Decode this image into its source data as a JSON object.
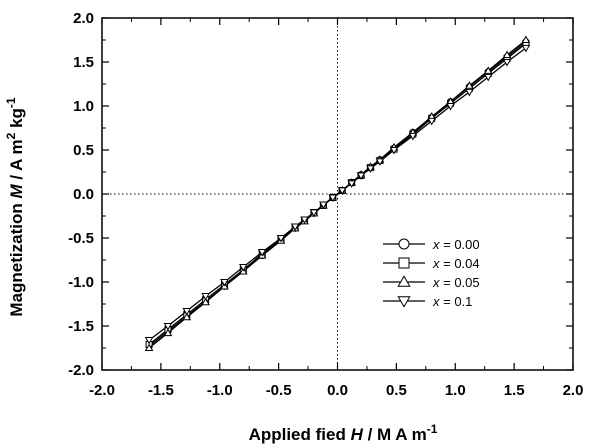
{
  "chart_data": {
    "type": "line",
    "xlabel": {
      "prefix": "Applied fied ",
      "symbol": "H",
      "unit": " / M A m",
      "unit_sup": "-1"
    },
    "ylabel": {
      "prefix": "Magnetization ",
      "symbol": "M",
      "unit": " / A m",
      "unit_sup": "2",
      "unit_after": " kg",
      "unit_sup2": "-1"
    },
    "xlim": [
      -2.0,
      2.0
    ],
    "ylim": [
      -2.0,
      2.0
    ],
    "xticks": [
      "-2.0",
      "-1.5",
      "-1.0",
      "-0.5",
      "0.0",
      "0.5",
      "1.0",
      "1.5",
      "2.0"
    ],
    "yticks": [
      "-2.0",
      "-1.5",
      "-1.0",
      "-0.5",
      "0.0",
      "0.5",
      "1.0",
      "1.5",
      "2.0"
    ],
    "zero_lines": "dotted",
    "legend_position": "lower-right",
    "series": [
      {
        "name": "x = 0.00",
        "var": "x",
        "value_text": " = 0.00",
        "marker": "circle",
        "x": [
          -1.6,
          -1.44,
          -1.28,
          -1.12,
          -0.96,
          -0.8,
          -0.64,
          -0.48,
          -0.36,
          -0.28,
          -0.2,
          -0.12,
          -0.04,
          0.04,
          0.12,
          0.2,
          0.28,
          0.36,
          0.48,
          0.64,
          0.8,
          0.96,
          1.12,
          1.28,
          1.44,
          1.6
        ],
        "y": [
          -1.73,
          -1.56,
          -1.39,
          -1.22,
          -1.05,
          -0.87,
          -0.7,
          -0.52,
          -0.39,
          -0.3,
          -0.22,
          -0.13,
          -0.04,
          0.04,
          0.13,
          0.22,
          0.3,
          0.39,
          0.52,
          0.7,
          0.87,
          1.05,
          1.22,
          1.39,
          1.56,
          1.73
        ]
      },
      {
        "name": "x = 0.04",
        "var": "x",
        "value_text": " = 0.04",
        "marker": "square",
        "x": [
          -1.6,
          -1.44,
          -1.28,
          -1.12,
          -0.96,
          -0.8,
          -0.64,
          -0.48,
          -0.36,
          -0.28,
          -0.2,
          -0.12,
          -0.04,
          0.04,
          0.12,
          0.2,
          0.28,
          0.36,
          0.48,
          0.64,
          0.8,
          0.96,
          1.12,
          1.28,
          1.44,
          1.6
        ],
        "y": [
          -1.71,
          -1.54,
          -1.37,
          -1.2,
          -1.03,
          -0.86,
          -0.68,
          -0.51,
          -0.38,
          -0.3,
          -0.21,
          -0.13,
          -0.04,
          0.04,
          0.13,
          0.21,
          0.3,
          0.38,
          0.51,
          0.68,
          0.86,
          1.03,
          1.2,
          1.37,
          1.54,
          1.71
        ]
      },
      {
        "name": "x = 0.05",
        "var": "x",
        "value_text": " = 0.05",
        "marker": "triangle-up",
        "x": [
          -1.6,
          -1.44,
          -1.28,
          -1.12,
          -0.96,
          -0.8,
          -0.64,
          -0.48,
          -0.36,
          -0.28,
          -0.2,
          -0.12,
          -0.04,
          0.04,
          0.12,
          0.2,
          0.28,
          0.36,
          0.48,
          0.64,
          0.8,
          0.96,
          1.12,
          1.28,
          1.44,
          1.6
        ],
        "y": [
          -1.75,
          -1.58,
          -1.4,
          -1.23,
          -1.05,
          -0.88,
          -0.7,
          -0.53,
          -0.39,
          -0.31,
          -0.22,
          -0.13,
          -0.04,
          0.04,
          0.13,
          0.22,
          0.31,
          0.39,
          0.53,
          0.7,
          0.88,
          1.05,
          1.23,
          1.4,
          1.58,
          1.75
        ]
      },
      {
        "name": "x = 0.1",
        "var": "x",
        "value_text": " = 0.1",
        "marker": "triangle-down",
        "x": [
          -1.6,
          -1.44,
          -1.28,
          -1.12,
          -0.96,
          -0.8,
          -0.64,
          -0.48,
          -0.36,
          -0.28,
          -0.2,
          -0.12,
          -0.04,
          0.04,
          0.12,
          0.2,
          0.28,
          0.36,
          0.48,
          0.64,
          0.8,
          0.96,
          1.12,
          1.28,
          1.44,
          1.6
        ],
        "y": [
          -1.66,
          -1.5,
          -1.33,
          -1.16,
          -1.0,
          -0.83,
          -0.66,
          -0.5,
          -0.37,
          -0.29,
          -0.21,
          -0.12,
          -0.04,
          0.04,
          0.12,
          0.21,
          0.29,
          0.37,
          0.5,
          0.66,
          0.83,
          1.0,
          1.16,
          1.33,
          1.5,
          1.66
        ]
      }
    ]
  }
}
